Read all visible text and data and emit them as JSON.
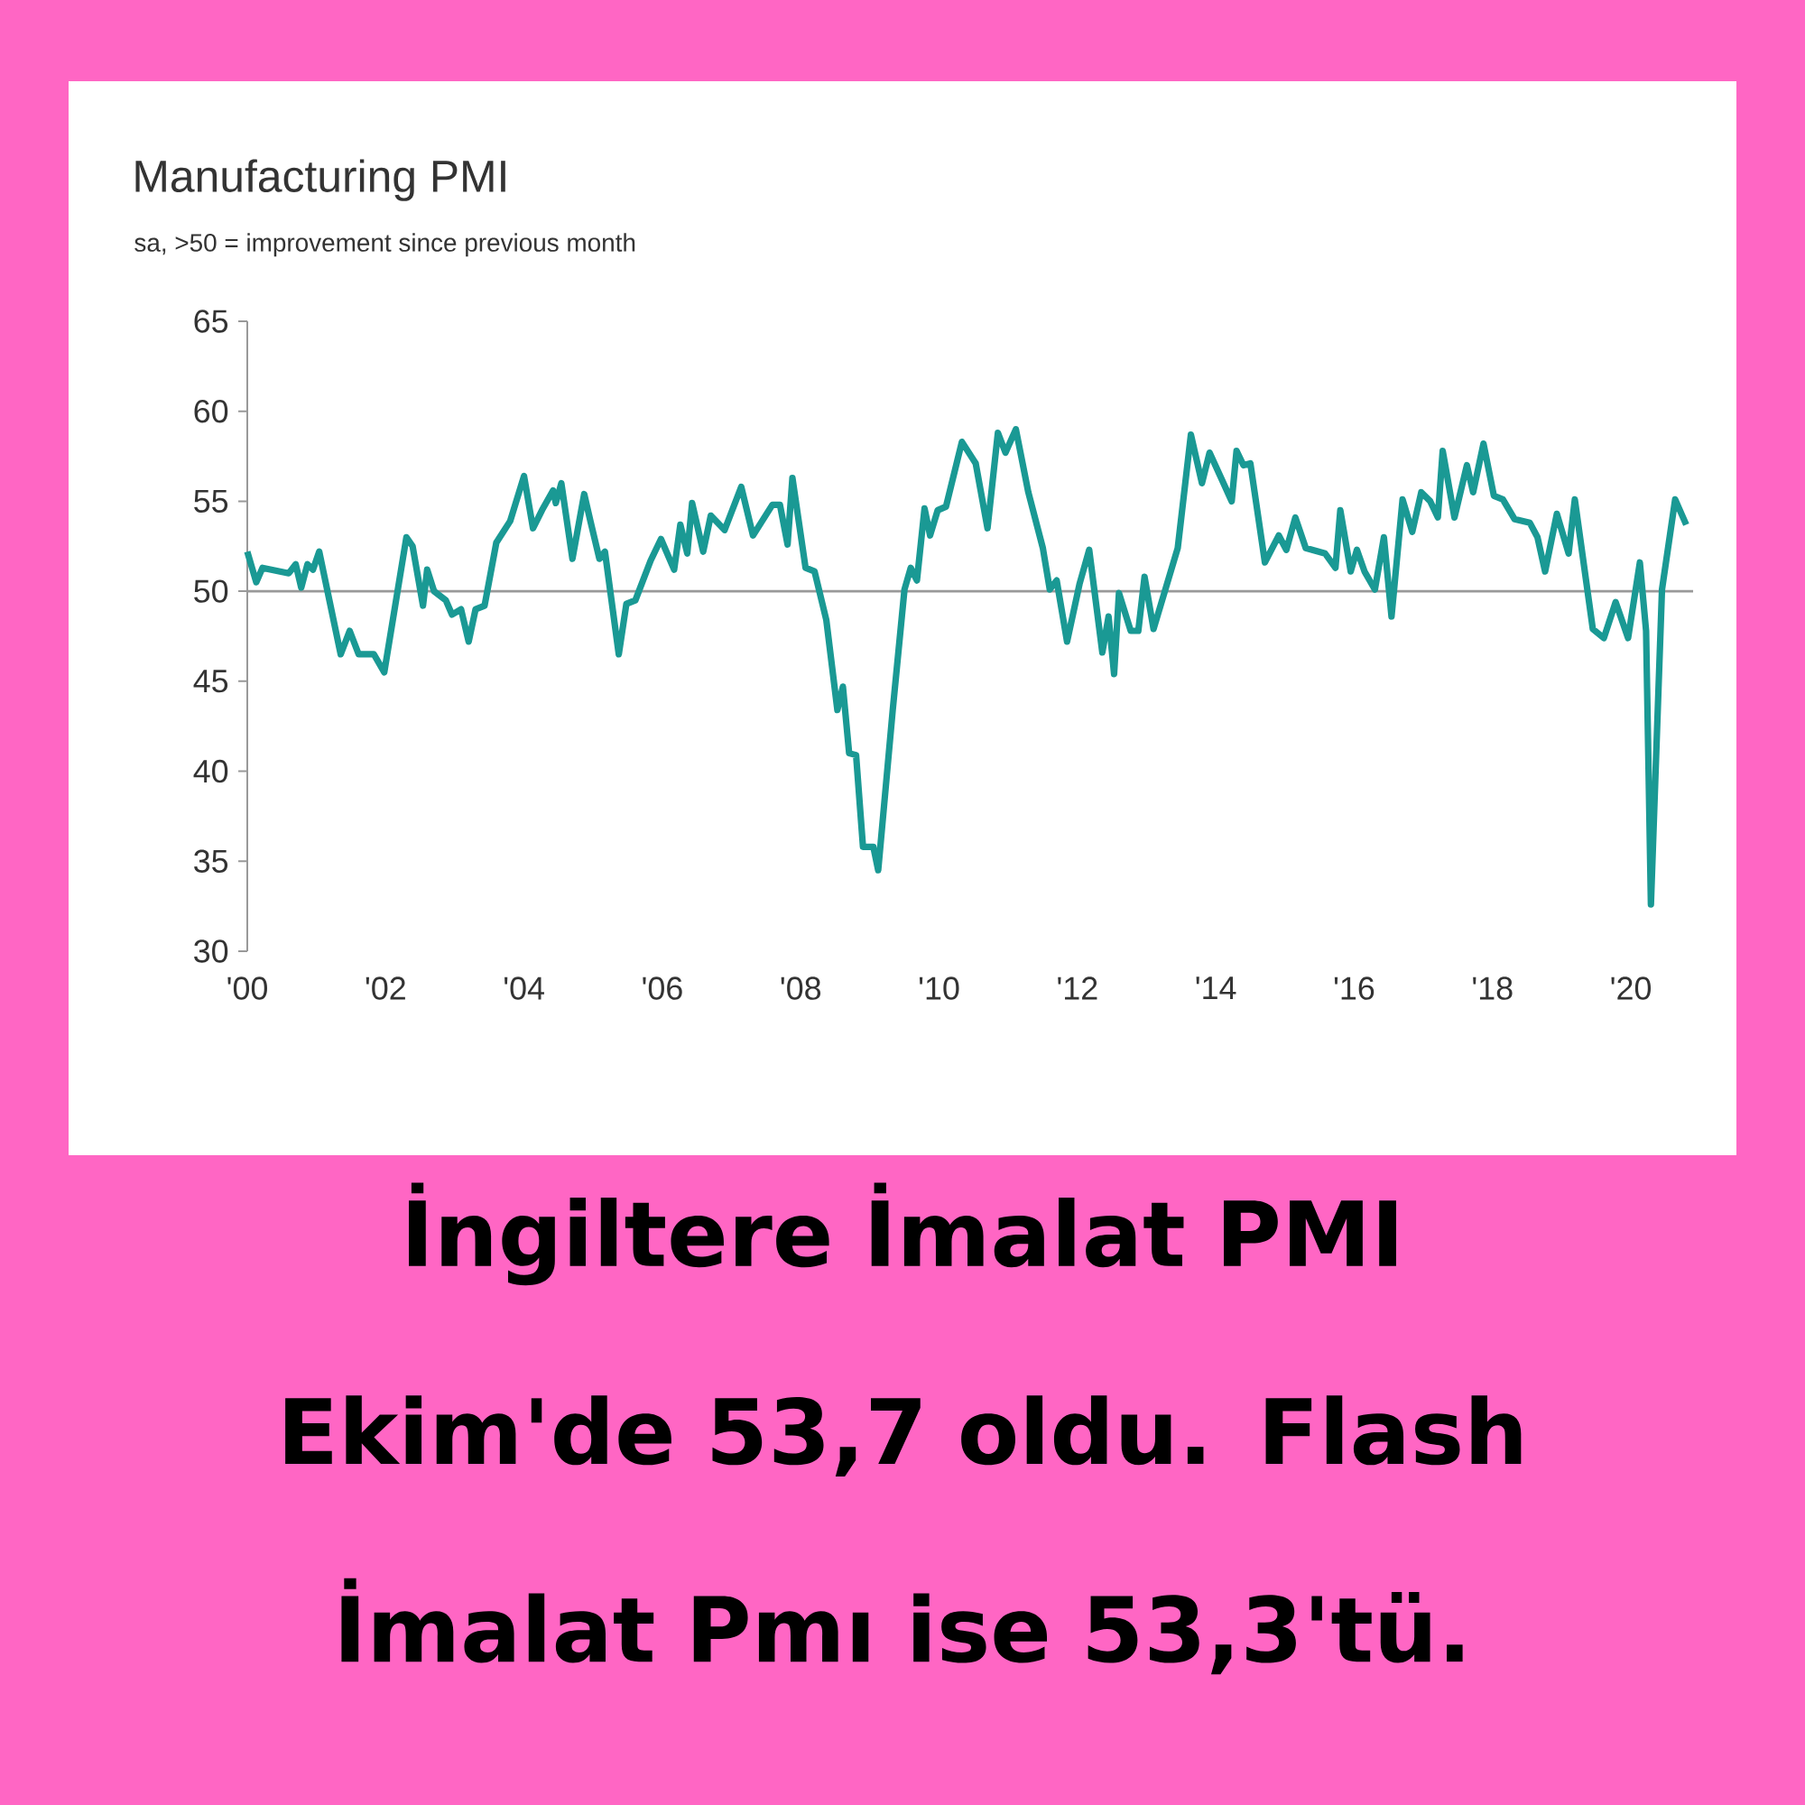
{
  "chart_data": {
    "type": "line",
    "title": "Manufacturing PMI",
    "subtitle": "sa, >50 = improvement since previous month",
    "annotations": [
      "İngiltere İmalat PMI Ekim'de 53,7 oldu. Flash İmalat Pmı ise 53,3'tü."
    ],
    "x": [
      2000.0,
      2000.13,
      2000.22,
      2000.6,
      2000.7,
      2000.78,
      2000.87,
      2000.95,
      2001.04,
      2001.35,
      2001.48,
      2001.61,
      2001.83,
      2001.98,
      2002.3,
      2002.39,
      2002.54,
      2002.6,
      2002.7,
      2002.87,
      2002.96,
      2003.09,
      2003.2,
      2003.3,
      2003.43,
      2003.6,
      2003.8,
      2004.0,
      2004.13,
      2004.26,
      2004.42,
      2004.46,
      2004.54,
      2004.7,
      2004.87,
      2004.96,
      2005.09,
      2005.17,
      2005.37,
      2005.48,
      2005.61,
      2005.83,
      2005.98,
      2006.17,
      2006.26,
      2006.36,
      2006.43,
      2006.59,
      2006.7,
      2006.9,
      2007.14,
      2007.31,
      2007.59,
      2007.7,
      2007.81,
      2007.88,
      2008.07,
      2008.2,
      2008.37,
      2008.53,
      2008.61,
      2008.7,
      2008.8,
      2008.9,
      2009.05,
      2009.12,
      2009.33,
      2009.5,
      2009.59,
      2009.68,
      2009.79,
      2009.87,
      2009.98,
      2010.1,
      2010.33,
      2010.53,
      2010.7,
      2010.85,
      2010.96,
      2011.11,
      2011.29,
      2011.5,
      2011.6,
      2011.7,
      2011.85,
      2012.03,
      2012.17,
      2012.36,
      2012.45,
      2012.53,
      2012.6,
      2012.77,
      2012.88,
      2012.97,
      2013.1,
      2013.45,
      2013.64,
      2013.8,
      2013.91,
      2014.1,
      2014.23,
      2014.3,
      2014.4,
      2014.5,
      2014.71,
      2014.91,
      2015.02,
      2015.15,
      2015.3,
      2015.58,
      2015.73,
      2015.8,
      2015.95,
      2016.04,
      2016.15,
      2016.3,
      2016.43,
      2016.54,
      2016.7,
      2016.84,
      2016.97,
      2017.1,
      2017.21,
      2017.28,
      2017.45,
      2017.63,
      2017.72,
      2017.87,
      2018.02,
      2018.15,
      2018.32,
      2018.54,
      2018.65,
      2018.76,
      2018.93,
      2019.1,
      2019.19,
      2019.45,
      2019.61,
      2019.78,
      2019.96,
      2020.13,
      2020.22,
      2020.29,
      2020.45,
      2020.64,
      2020.8
    ],
    "series": [
      {
        "color": "#1a9994",
        "values": [
          52.2,
          50.5,
          51.3,
          51.0,
          51.5,
          50.2,
          51.5,
          51.2,
          52.2,
          46.5,
          47.8,
          46.5,
          46.5,
          45.5,
          53.0,
          52.5,
          49.2,
          51.2,
          50.0,
          49.5,
          48.7,
          49.0,
          47.2,
          49.0,
          49.2,
          52.7,
          53.9,
          56.4,
          53.5,
          54.5,
          55.6,
          54.9,
          56.0,
          51.8,
          55.4,
          53.9,
          51.8,
          52.2,
          46.5,
          49.3,
          49.5,
          51.7,
          52.9,
          51.2,
          53.7,
          52.1,
          54.9,
          52.2,
          54.2,
          53.4,
          55.8,
          53.1,
          54.8,
          54.8,
          52.6,
          56.3,
          51.3,
          51.1,
          48.4,
          43.4,
          44.7,
          41.0,
          40.9,
          35.8,
          35.8,
          34.5,
          43.4,
          50.1,
          51.3,
          50.6,
          54.6,
          53.1,
          54.5,
          54.7,
          58.3,
          57.1,
          53.5,
          58.8,
          57.7,
          59.0,
          55.5,
          52.4,
          50.1,
          50.6,
          47.2,
          50.4,
          52.3,
          46.6,
          48.6,
          45.4,
          49.9,
          47.8,
          47.8,
          50.8,
          47.9,
          52.4,
          58.7,
          56.0,
          57.7,
          56.1,
          55.0,
          57.8,
          57.0,
          57.1,
          51.6,
          53.1,
          52.3,
          54.1,
          52.4,
          52.1,
          51.3,
          54.5,
          51.1,
          52.3,
          51.1,
          50.1,
          53.0,
          48.6,
          55.1,
          53.3,
          55.5,
          55.0,
          54.1,
          57.8,
          54.1,
          57.0,
          55.5,
          58.2,
          55.3,
          55.1,
          54.0,
          53.8,
          53.0,
          51.1,
          54.3,
          52.1,
          55.1,
          47.9,
          47.4,
          49.4,
          47.4,
          51.6,
          47.8,
          32.6,
          50.1,
          55.1,
          53.7
        ]
      }
    ],
    "xlim": [
      2000,
      2020.9
    ],
    "ylim": [
      30,
      65
    ],
    "xticks": [
      {
        "value": 2000,
        "label": "'00"
      },
      {
        "value": 2002,
        "label": "'02"
      },
      {
        "value": 2004,
        "label": "'04"
      },
      {
        "value": 2006,
        "label": "'06"
      },
      {
        "value": 2008,
        "label": "'08"
      },
      {
        "value": 2010,
        "label": "'10"
      },
      {
        "value": 2012,
        "label": "'12"
      },
      {
        "value": 2014,
        "label": "'14"
      },
      {
        "value": 2016,
        "label": "'16"
      },
      {
        "value": 2018,
        "label": "'18"
      },
      {
        "value": 2020,
        "label": "'20"
      }
    ],
    "yticks": [
      30,
      35,
      40,
      45,
      50,
      55,
      60,
      65
    ],
    "ref_lines": [
      {
        "axis": "y",
        "value": 50,
        "color": "#999999"
      }
    ]
  }
}
